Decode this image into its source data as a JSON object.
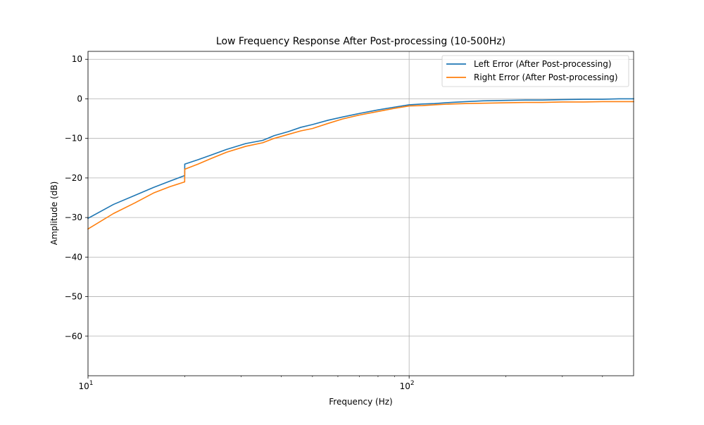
{
  "chart_data": {
    "type": "line",
    "title": "Low Frequency Response After Post-processing (10-500Hz)",
    "xlabel": "Frequency (Hz)",
    "ylabel": "Amplitude (dB)",
    "xscale": "log",
    "xlim": [
      10,
      500
    ],
    "ylim": [
      -70,
      12
    ],
    "grid": true,
    "legend_position": "top-right",
    "x_ticks": [
      {
        "value": 10,
        "base": "10",
        "exp": "1"
      },
      {
        "value": 100,
        "base": "10",
        "exp": "2"
      }
    ],
    "y_ticks": [
      {
        "value": 10,
        "label": "10"
      },
      {
        "value": 0,
        "label": "0"
      },
      {
        "value": -10,
        "label": "−10"
      },
      {
        "value": -20,
        "label": "−20"
      },
      {
        "value": -30,
        "label": "−30"
      },
      {
        "value": -40,
        "label": "−40"
      },
      {
        "value": -50,
        "label": "−50"
      },
      {
        "value": -60,
        "label": "−60"
      }
    ],
    "series": [
      {
        "name": "Left Error (After Post-processing)",
        "color": "#1f77b4",
        "points": [
          [
            10,
            -30.2
          ],
          [
            12,
            -26.7
          ],
          [
            14,
            -24.4
          ],
          [
            16,
            -22.4
          ],
          [
            18,
            -20.8
          ],
          [
            20,
            -19.4
          ],
          [
            20.01,
            -16.5
          ],
          [
            22,
            -15.4
          ],
          [
            24,
            -14.3
          ],
          [
            27,
            -12.8
          ],
          [
            31,
            -11.3
          ],
          [
            35,
            -10.5
          ],
          [
            38,
            -9.3
          ],
          [
            42,
            -8.3
          ],
          [
            46,
            -7.2
          ],
          [
            50,
            -6.5
          ],
          [
            56,
            -5.4
          ],
          [
            62,
            -4.6
          ],
          [
            70,
            -3.7
          ],
          [
            80,
            -2.8
          ],
          [
            90,
            -2.1
          ],
          [
            100,
            -1.5
          ],
          [
            110,
            -1.3
          ],
          [
            120,
            -1.2
          ],
          [
            135,
            -0.9
          ],
          [
            150,
            -0.7
          ],
          [
            170,
            -0.5
          ],
          [
            200,
            -0.4
          ],
          [
            230,
            -0.3
          ],
          [
            260,
            -0.3
          ],
          [
            300,
            -0.2
          ],
          [
            350,
            -0.1
          ],
          [
            400,
            -0.1
          ],
          [
            450,
            0.0
          ],
          [
            500,
            0.0
          ]
        ]
      },
      {
        "name": "Right Error (After Post-processing)",
        "color": "#ff7f0e",
        "points": [
          [
            10,
            -32.9
          ],
          [
            12,
            -29.0
          ],
          [
            14,
            -26.3
          ],
          [
            16,
            -23.8
          ],
          [
            18,
            -22.2
          ],
          [
            20,
            -21.0
          ],
          [
            20.01,
            -17.8
          ],
          [
            22,
            -16.5
          ],
          [
            24,
            -15.2
          ],
          [
            27,
            -13.5
          ],
          [
            31,
            -12.0
          ],
          [
            35,
            -11.1
          ],
          [
            38,
            -10.0
          ],
          [
            42,
            -9.0
          ],
          [
            46,
            -8.1
          ],
          [
            50,
            -7.5
          ],
          [
            56,
            -6.2
          ],
          [
            62,
            -5.1
          ],
          [
            70,
            -4.1
          ],
          [
            80,
            -3.2
          ],
          [
            90,
            -2.4
          ],
          [
            100,
            -1.8
          ],
          [
            110,
            -1.7
          ],
          [
            120,
            -1.5
          ],
          [
            135,
            -1.3
          ],
          [
            150,
            -1.2
          ],
          [
            170,
            -1.1
          ],
          [
            200,
            -1.0
          ],
          [
            230,
            -0.9
          ],
          [
            260,
            -0.9
          ],
          [
            300,
            -0.8
          ],
          [
            350,
            -0.8
          ],
          [
            400,
            -0.7
          ],
          [
            450,
            -0.7
          ],
          [
            500,
            -0.7
          ]
        ]
      }
    ]
  }
}
